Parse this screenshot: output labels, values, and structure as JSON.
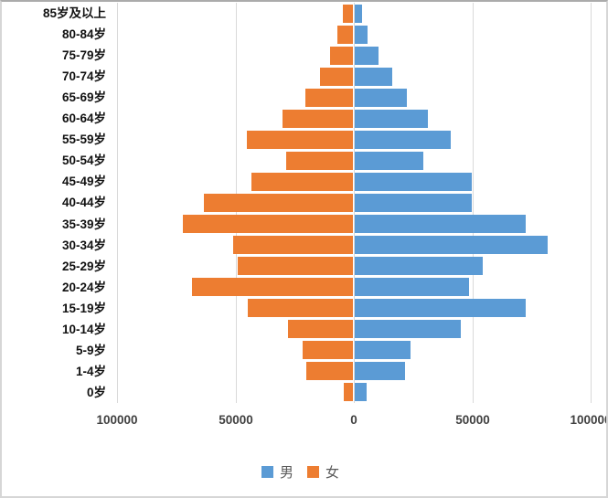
{
  "chart_data": {
    "type": "bar",
    "subtype": "population-pyramid",
    "orientation": "horizontal",
    "categories": [
      "85岁及以上",
      "80-84岁",
      "75-79岁",
      "70-74岁",
      "65-69岁",
      "60-64岁",
      "55-59岁",
      "50-54岁",
      "45-49岁",
      "40-44岁",
      "35-39岁",
      "30-34岁",
      "25-29岁",
      "20-24岁",
      "15-19岁",
      "10-14岁",
      "5-9岁",
      "1-4岁",
      "0岁"
    ],
    "series": [
      {
        "name": "男",
        "side": "right",
        "color": "#5B9BD5",
        "values": [
          3100,
          5500,
          10000,
          15800,
          21900,
          31000,
          40600,
          29000,
          49300,
          49300,
          72200,
          81400,
          54200,
          48300,
          72100,
          44800,
          23600,
          21300,
          4900
        ]
      },
      {
        "name": "女",
        "side": "left",
        "color": "#ED7D31",
        "values": [
          4200,
          6400,
          9800,
          13900,
          20200,
          29600,
          44900,
          28200,
          42700,
          63100,
          71800,
          50500,
          48800,
          68100,
          44300,
          27300,
          21300,
          19600,
          3900
        ]
      }
    ],
    "x_axis": {
      "tick_values": [
        -100000,
        -50000,
        0,
        50000,
        100000
      ],
      "tick_labels": [
        "100000",
        "50000",
        "0",
        "50000",
        "100000"
      ],
      "abs_range": [
        0,
        100000
      ],
      "grid": true
    },
    "y_axis": {
      "label_side": "left"
    },
    "legend": {
      "position": "bottom"
    }
  },
  "colors": {
    "male": "#5B9BD5",
    "female": "#ED7D31",
    "gridline": "#d9d9d9",
    "axis_text": "#404040",
    "category_text": "#111111",
    "legend_text": "#595959"
  }
}
